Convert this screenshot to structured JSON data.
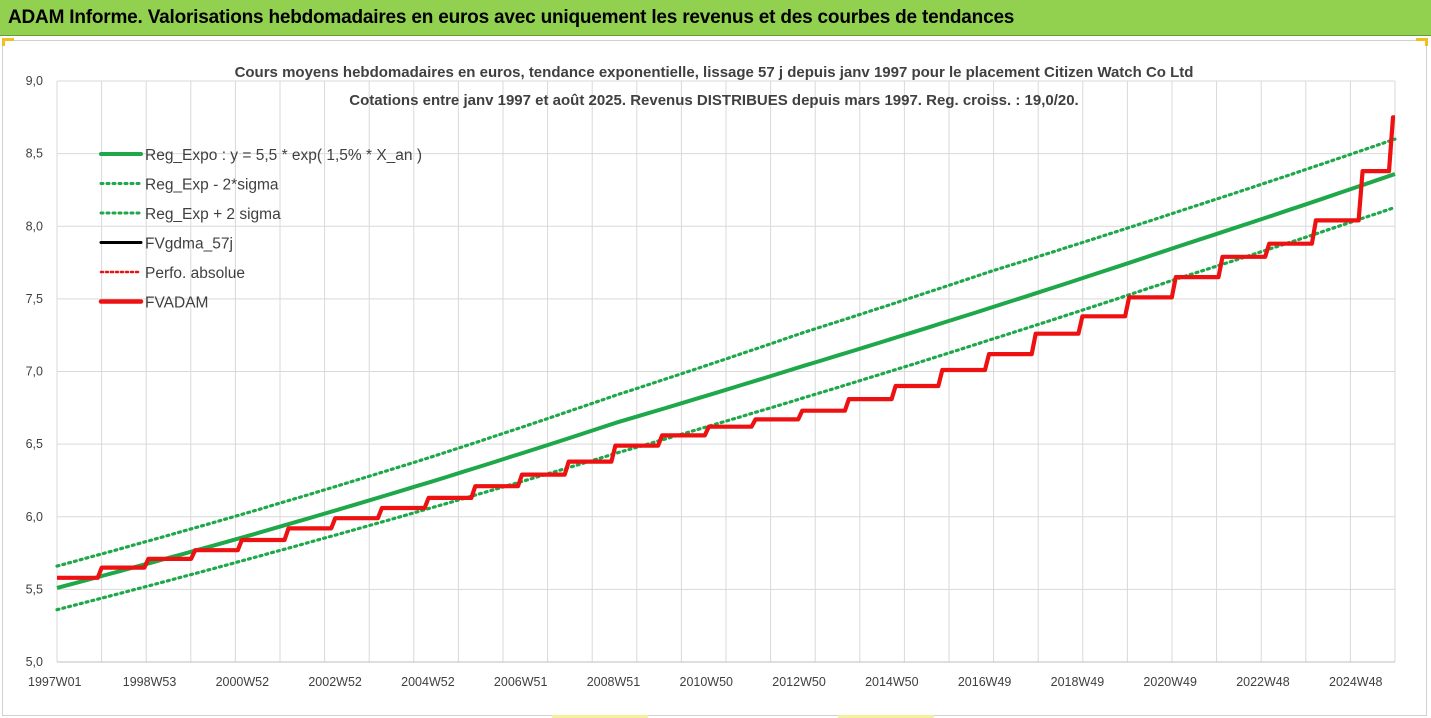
{
  "header": {
    "title": "ADAM Informe. Valorisations hebdomadaires en euros avec uniquement les revenus et des courbes de tendances"
  },
  "colors": {
    "banner": "#92d050",
    "trend_green": "#1ea84a",
    "fv_red": "#ee1111",
    "fv_black": "#000000",
    "grid": "#d9d9d9"
  },
  "chart_data": {
    "type": "line",
    "title": "Cours moyens hebdomadaires en euros, tendance exponentielle, lissage 57 j depuis janv 1997 pour le placement Citizen Watch Co Ltd",
    "subtitle": "Cotations entre janv 1997 et août 2025. Revenus DISTRIBUES depuis mars 1997. Reg. croiss. : 19,0/20.",
    "xlabel": "",
    "ylabel": "",
    "ylim": [
      5.0,
      9.0
    ],
    "y_ticks": [
      "9,0",
      "8,5",
      "8,0",
      "7,5",
      "7,0",
      "6,5",
      "6,0",
      "5,5",
      "5,0"
    ],
    "x_ticks": [
      "1997W01",
      "1998W53",
      "2000W52",
      "2002W52",
      "2004W52",
      "2006W51",
      "2008W51",
      "2010W50",
      "2012W50",
      "2014W50",
      "2016W49",
      "2018W49",
      "2020W49",
      "2022W48",
      "2024W48"
    ],
    "x_range_years": [
      1997.0,
      2025.65
    ],
    "grid": "vertical and horizontal",
    "legend_position": "top-left",
    "legend": [
      "Reg_Expo : y = 5,5 * exp( 1,5% *  X_an )",
      "Reg_Exp - 2*sigma",
      "Reg_Exp + 2 sigma",
      "FVgdma_57j",
      "Perfo. absolue",
      "FVADAM"
    ],
    "series": [
      {
        "name": "Reg_Expo : y = 5,5 * exp( 1,5% *  X_an )",
        "style": "solid green",
        "x": [
          1997,
          2001,
          2005,
          2009,
          2013,
          2017,
          2021,
          2025.65
        ],
        "y": [
          5.51,
          5.86,
          6.24,
          6.65,
          7.04,
          7.44,
          7.86,
          8.36
        ]
      },
      {
        "name": "Reg_Exp - 2*sigma",
        "style": "dotted green",
        "x": [
          1997,
          2001,
          2005,
          2009,
          2013,
          2017,
          2021,
          2025.65
        ],
        "y": [
          5.36,
          5.7,
          6.06,
          6.44,
          6.82,
          7.22,
          7.64,
          8.13
        ]
      },
      {
        "name": "Reg_Exp + 2 sigma",
        "style": "dotted green",
        "x": [
          1997,
          2001,
          2005,
          2009,
          2013,
          2017,
          2021,
          2025.65
        ],
        "y": [
          5.66,
          6.02,
          6.41,
          6.84,
          7.27,
          7.69,
          8.1,
          8.6
        ]
      },
      {
        "name": "FVADAM",
        "style": "solid red stepped",
        "x": [
          1997.0,
          1998.0,
          1999.0,
          2000.0,
          2001.0,
          2002.0,
          2003.0,
          2004.0,
          2005.0,
          2006.0,
          2007.0,
          2008.0,
          2009.0,
          2010.0,
          2011.0,
          2012.0,
          2013.0,
          2014.0,
          2015.0,
          2016.0,
          2017.0,
          2018.0,
          2019.0,
          2020.0,
          2021.0,
          2022.0,
          2023.0,
          2024.0,
          2025.0,
          2025.65
        ],
        "y": [
          5.58,
          5.65,
          5.71,
          5.77,
          5.84,
          5.92,
          5.99,
          6.06,
          6.13,
          6.21,
          6.29,
          6.38,
          6.49,
          6.56,
          6.62,
          6.67,
          6.73,
          6.81,
          6.9,
          7.01,
          7.12,
          7.26,
          7.38,
          7.51,
          7.65,
          7.79,
          7.88,
          8.04,
          8.38,
          8.75
        ]
      }
    ]
  }
}
